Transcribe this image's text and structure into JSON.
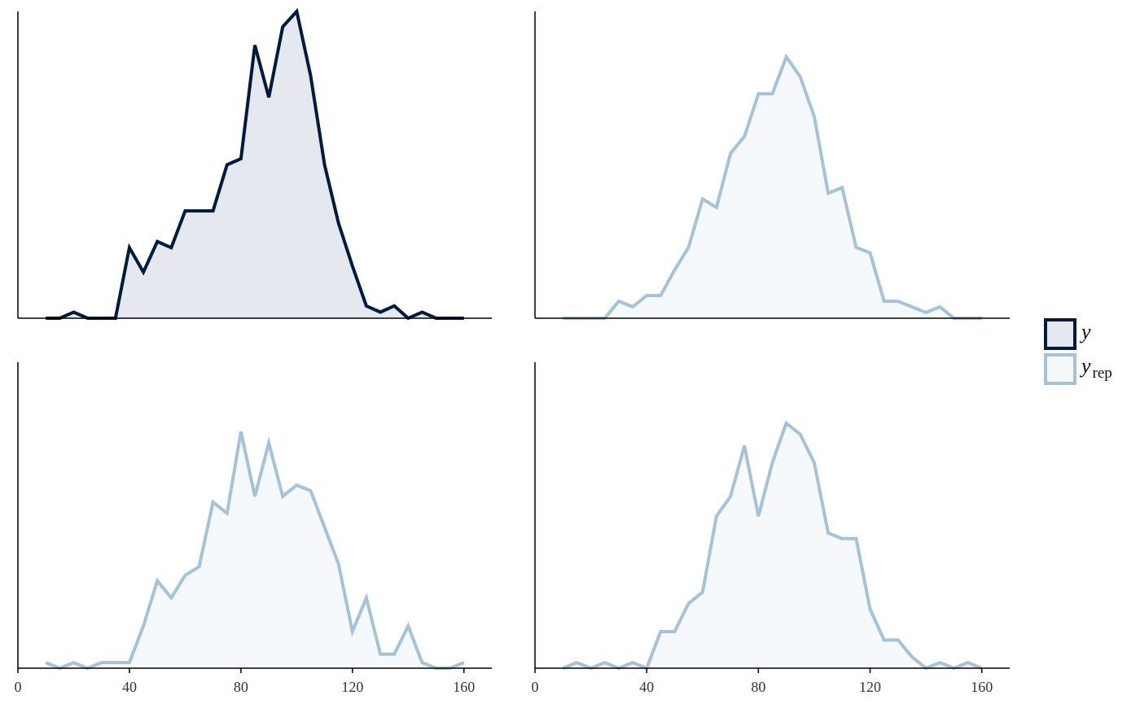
{
  "chart_data": {
    "type": "area",
    "layout": "2x2 facets",
    "x": [
      10,
      15,
      20,
      25,
      30,
      35,
      40,
      45,
      50,
      55,
      60,
      65,
      70,
      75,
      80,
      85,
      90,
      95,
      100,
      105,
      110,
      115,
      120,
      125,
      130,
      135,
      140,
      145,
      150,
      155,
      160
    ],
    "xlim": [
      0,
      170
    ],
    "x_ticks": [
      0,
      40,
      80,
      120,
      160
    ],
    "ylim": [
      0,
      1
    ],
    "y_ticks_shown": false,
    "grid": false,
    "legend": {
      "placement": "right",
      "entries": [
        {
          "key": "y",
          "symbol": "y",
          "subscript": ""
        },
        {
          "key": "yrep",
          "symbol": "y",
          "subscript": "rep"
        }
      ]
    },
    "colors": {
      "y_line": "#011a3e",
      "y_fill": "#e5e8ee",
      "yrep_line": "#a6c2d9",
      "yrep_fill": "#f6f9fb",
      "axis": "#000000"
    },
    "panels": [
      {
        "series": "y",
        "values": [
          0,
          0,
          0.02,
          0,
          0,
          0,
          0.23,
          0.15,
          0.25,
          0.23,
          0.35,
          0.35,
          0.35,
          0.5,
          0.52,
          0.89,
          0.72,
          0.95,
          1.0,
          0.79,
          0.5,
          0.31,
          0.17,
          0.04,
          0.02,
          0.04,
          0,
          0.02,
          0,
          0,
          0
        ]
      },
      {
        "series": "yrep",
        "values": [
          0,
          0,
          0,
          0,
          0.06,
          0.04,
          0.08,
          0.08,
          0.17,
          0.25,
          0.42,
          0.39,
          0.58,
          0.64,
          0.79,
          0.79,
          0.92,
          0.85,
          0.71,
          0.44,
          0.46,
          0.25,
          0.23,
          0.06,
          0.06,
          0.04,
          0.02,
          0.04,
          0,
          0,
          0
        ]
      },
      {
        "series": "yrep",
        "values": [
          0.02,
          0,
          0.02,
          0,
          0.02,
          0.02,
          0.02,
          0.15,
          0.31,
          0.25,
          0.33,
          0.36,
          0.59,
          0.55,
          0.84,
          0.61,
          0.8,
          0.61,
          0.65,
          0.63,
          0.5,
          0.37,
          0.13,
          0.25,
          0.05,
          0.05,
          0.15,
          0.02,
          0,
          0,
          0.02
        ]
      },
      {
        "series": "yrep",
        "values": [
          0,
          0.02,
          0,
          0.02,
          0,
          0.02,
          0,
          0.13,
          0.13,
          0.23,
          0.27,
          0.54,
          0.61,
          0.79,
          0.54,
          0.73,
          0.87,
          0.83,
          0.73,
          0.48,
          0.46,
          0.46,
          0.21,
          0.1,
          0.1,
          0.04,
          0,
          0.02,
          0,
          0.02,
          0
        ]
      }
    ]
  }
}
